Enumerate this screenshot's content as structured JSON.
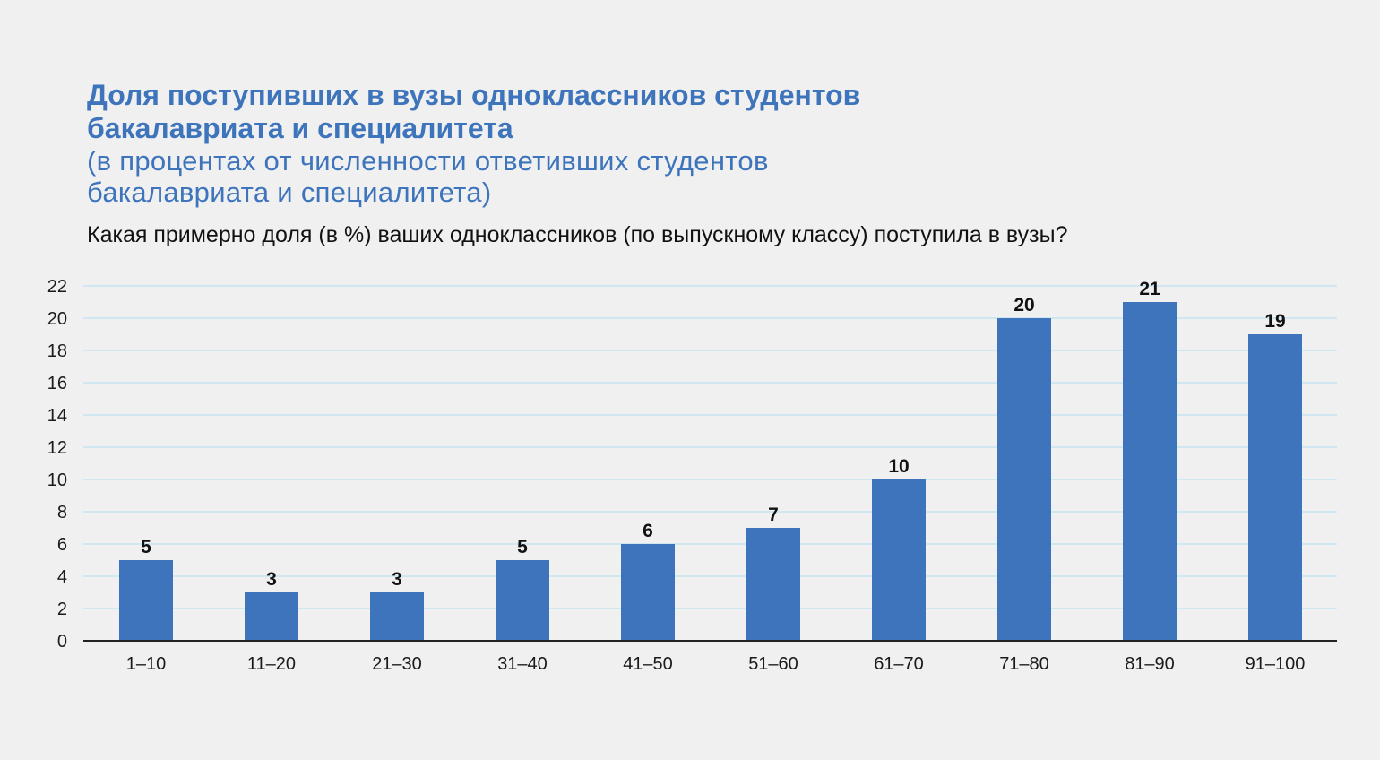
{
  "title": "Доля поступивших в вузы одноклассников студентов\nбакалавриата и специалитета",
  "subtitle": "(в процентах от численности ответивших студентов\nбакалавриата и специалитета)",
  "question": "Какая примерно доля (в %) ваших одноклассников (по выпускному классу) поступила в вузы?",
  "colors": {
    "background": "#f0f0f0",
    "title": "#3d74bb",
    "bar": "#3d74bb",
    "gridline": "#c6e4f2",
    "axis": "#222222"
  },
  "chart_data": {
    "type": "bar",
    "title": "Доля поступивших в вузы одноклассников студентов бакалавриата и специалитета",
    "subtitle": "(в процентах от численности ответивших студентов бакалавриата и специалитета)",
    "xlabel": "",
    "ylabel": "",
    "categories": [
      "1–10",
      "11–20",
      "21–30",
      "31–40",
      "41–50",
      "51–60",
      "61–70",
      "71–80",
      "81–90",
      "91–100"
    ],
    "values": [
      5,
      3,
      3,
      5,
      6,
      7,
      10,
      20,
      21,
      19
    ],
    "ylim": [
      0,
      22
    ],
    "yticks": [
      0,
      2,
      4,
      6,
      8,
      10,
      12,
      14,
      16,
      18,
      20,
      22
    ],
    "grid": true,
    "legend": "none",
    "data_labels": true
  }
}
